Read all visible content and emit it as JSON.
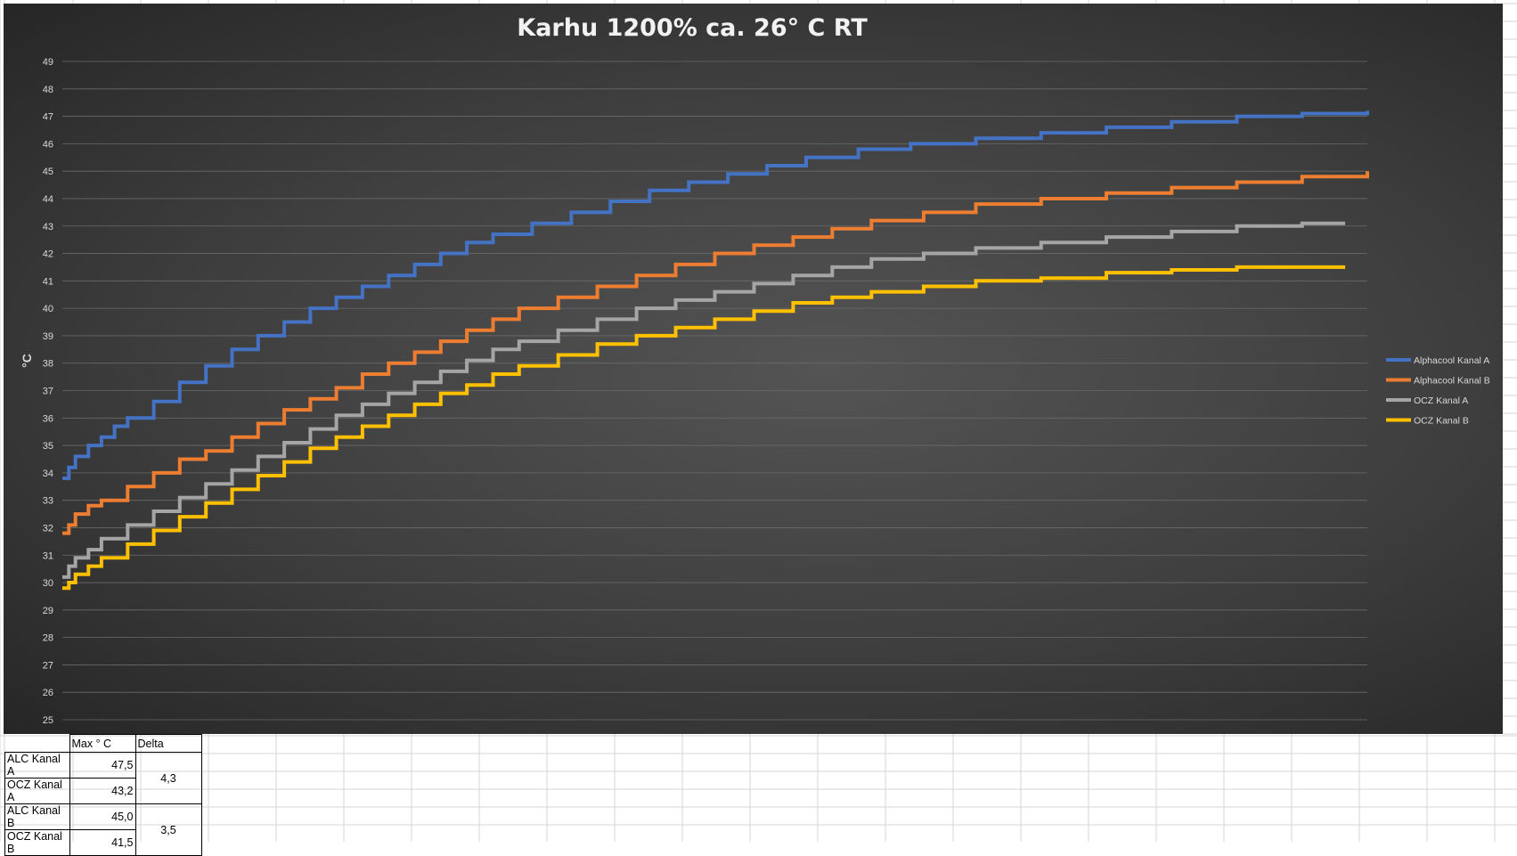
{
  "chart_data": {
    "type": "line",
    "title": "Karhu 1200% ca. 26° C RT",
    "xlabel": "",
    "ylabel": "°C",
    "ylim": [
      25,
      49
    ],
    "yticks": [
      25,
      26,
      27,
      28,
      29,
      30,
      31,
      32,
      33,
      34,
      35,
      36,
      37,
      38,
      39,
      40,
      41,
      42,
      43,
      44,
      45,
      46,
      47,
      48,
      49
    ],
    "grid": true,
    "legend_position": "right",
    "series": [
      {
        "name": "Alphacool Kanal A",
        "color": "#4472c4",
        "points": [
          [
            0,
            33.8
          ],
          [
            0.005,
            34.2
          ],
          [
            0.01,
            34.6
          ],
          [
            0.02,
            35
          ],
          [
            0.03,
            35.3
          ],
          [
            0.04,
            35.7
          ],
          [
            0.05,
            36
          ],
          [
            0.07,
            36.6
          ],
          [
            0.09,
            37.3
          ],
          [
            0.11,
            37.9
          ],
          [
            0.13,
            38.5
          ],
          [
            0.15,
            39.0
          ],
          [
            0.17,
            39.5
          ],
          [
            0.19,
            40.0
          ],
          [
            0.21,
            40.4
          ],
          [
            0.23,
            40.8
          ],
          [
            0.25,
            41.2
          ],
          [
            0.27,
            41.6
          ],
          [
            0.29,
            42.0
          ],
          [
            0.31,
            42.4
          ],
          [
            0.33,
            42.7
          ],
          [
            0.36,
            43.1
          ],
          [
            0.39,
            43.5
          ],
          [
            0.42,
            43.9
          ],
          [
            0.45,
            44.3
          ],
          [
            0.48,
            44.6
          ],
          [
            0.51,
            44.9
          ],
          [
            0.54,
            45.2
          ],
          [
            0.57,
            45.5
          ],
          [
            0.61,
            45.8
          ],
          [
            0.65,
            46.0
          ],
          [
            0.7,
            46.2
          ],
          [
            0.75,
            46.4
          ],
          [
            0.8,
            46.6
          ],
          [
            0.85,
            46.8
          ],
          [
            0.9,
            47.0
          ],
          [
            0.95,
            47.1
          ],
          [
            1.0,
            47.2
          ]
        ]
      },
      {
        "name": "Alphacool Kanal B",
        "color": "#ed7d31",
        "points": [
          [
            0,
            31.8
          ],
          [
            0.005,
            32.1
          ],
          [
            0.01,
            32.5
          ],
          [
            0.02,
            32.8
          ],
          [
            0.03,
            33.0
          ],
          [
            0.05,
            33.5
          ],
          [
            0.07,
            34.0
          ],
          [
            0.09,
            34.5
          ],
          [
            0.11,
            34.8
          ],
          [
            0.13,
            35.3
          ],
          [
            0.15,
            35.8
          ],
          [
            0.17,
            36.3
          ],
          [
            0.19,
            36.7
          ],
          [
            0.21,
            37.1
          ],
          [
            0.23,
            37.6
          ],
          [
            0.25,
            38.0
          ],
          [
            0.27,
            38.4
          ],
          [
            0.29,
            38.8
          ],
          [
            0.31,
            39.2
          ],
          [
            0.33,
            39.6
          ],
          [
            0.35,
            40.0
          ],
          [
            0.38,
            40.4
          ],
          [
            0.41,
            40.8
          ],
          [
            0.44,
            41.2
          ],
          [
            0.47,
            41.6
          ],
          [
            0.5,
            42.0
          ],
          [
            0.53,
            42.3
          ],
          [
            0.56,
            42.6
          ],
          [
            0.59,
            42.9
          ],
          [
            0.62,
            43.2
          ],
          [
            0.66,
            43.5
          ],
          [
            0.7,
            43.8
          ],
          [
            0.75,
            44.0
          ],
          [
            0.8,
            44.2
          ],
          [
            0.85,
            44.4
          ],
          [
            0.9,
            44.6
          ],
          [
            0.95,
            44.8
          ],
          [
            1.0,
            45.0
          ]
        ]
      },
      {
        "name": "OCZ Kanal A",
        "color": "#a5a5a5",
        "points": [
          [
            0,
            30.2
          ],
          [
            0.005,
            30.6
          ],
          [
            0.01,
            30.9
          ],
          [
            0.02,
            31.2
          ],
          [
            0.03,
            31.6
          ],
          [
            0.05,
            32.1
          ],
          [
            0.07,
            32.6
          ],
          [
            0.09,
            33.1
          ],
          [
            0.11,
            33.6
          ],
          [
            0.13,
            34.1
          ],
          [
            0.15,
            34.6
          ],
          [
            0.17,
            35.1
          ],
          [
            0.19,
            35.6
          ],
          [
            0.21,
            36.1
          ],
          [
            0.23,
            36.5
          ],
          [
            0.25,
            36.9
          ],
          [
            0.27,
            37.3
          ],
          [
            0.29,
            37.7
          ],
          [
            0.31,
            38.1
          ],
          [
            0.33,
            38.5
          ],
          [
            0.35,
            38.8
          ],
          [
            0.38,
            39.2
          ],
          [
            0.41,
            39.6
          ],
          [
            0.44,
            40.0
          ],
          [
            0.47,
            40.3
          ],
          [
            0.5,
            40.6
          ],
          [
            0.53,
            40.9
          ],
          [
            0.56,
            41.2
          ],
          [
            0.59,
            41.5
          ],
          [
            0.62,
            41.8
          ],
          [
            0.66,
            42.0
          ],
          [
            0.7,
            42.2
          ],
          [
            0.75,
            42.4
          ],
          [
            0.8,
            42.6
          ],
          [
            0.85,
            42.8
          ],
          [
            0.9,
            43.0
          ],
          [
            0.95,
            43.1
          ],
          [
            0.983,
            43.1
          ]
        ]
      },
      {
        "name": "OCZ Kanal B",
        "color": "#ffc000",
        "points": [
          [
            0,
            29.8
          ],
          [
            0.005,
            30.0
          ],
          [
            0.01,
            30.3
          ],
          [
            0.02,
            30.6
          ],
          [
            0.03,
            30.9
          ],
          [
            0.05,
            31.4
          ],
          [
            0.07,
            31.9
          ],
          [
            0.09,
            32.4
          ],
          [
            0.11,
            32.9
          ],
          [
            0.13,
            33.4
          ],
          [
            0.15,
            33.9
          ],
          [
            0.17,
            34.4
          ],
          [
            0.19,
            34.9
          ],
          [
            0.21,
            35.3
          ],
          [
            0.23,
            35.7
          ],
          [
            0.25,
            36.1
          ],
          [
            0.27,
            36.5
          ],
          [
            0.29,
            36.9
          ],
          [
            0.31,
            37.2
          ],
          [
            0.33,
            37.6
          ],
          [
            0.35,
            37.9
          ],
          [
            0.38,
            38.3
          ],
          [
            0.41,
            38.7
          ],
          [
            0.44,
            39.0
          ],
          [
            0.47,
            39.3
          ],
          [
            0.5,
            39.6
          ],
          [
            0.53,
            39.9
          ],
          [
            0.56,
            40.2
          ],
          [
            0.59,
            40.4
          ],
          [
            0.62,
            40.6
          ],
          [
            0.66,
            40.8
          ],
          [
            0.7,
            41.0
          ],
          [
            0.75,
            41.1
          ],
          [
            0.8,
            41.3
          ],
          [
            0.85,
            41.4
          ],
          [
            0.9,
            41.5
          ],
          [
            0.983,
            41.5
          ]
        ]
      }
    ]
  },
  "table": {
    "headers": [
      "",
      "Max ° C",
      "Delta"
    ],
    "rows": [
      {
        "label": "ALC Kanal A",
        "max": "47,5"
      },
      {
        "label": "OCZ Kanal A",
        "max": "43,2"
      },
      {
        "label": "ALC Kanal B",
        "max": "45,0"
      },
      {
        "label": "OCZ Kanal B",
        "max": "41,5"
      }
    ],
    "deltas": [
      "4,3",
      "3,5"
    ]
  }
}
